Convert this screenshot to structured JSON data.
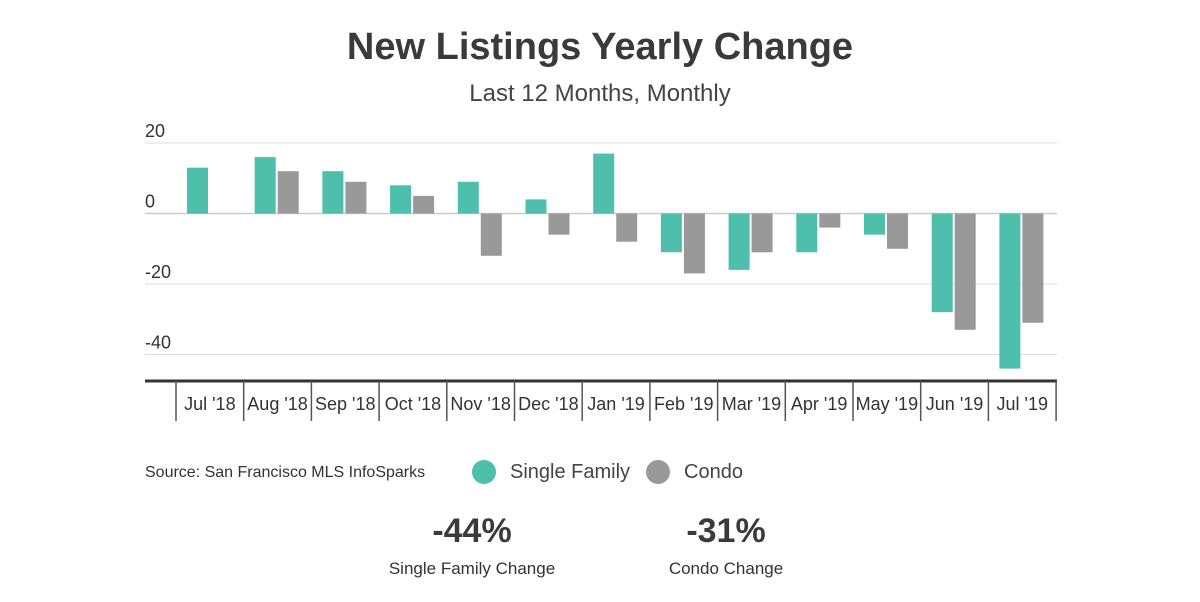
{
  "colors": {
    "single_family": "#4dbfaa",
    "condo": "#999999",
    "axis": "#333333",
    "grid": "#dddddd"
  },
  "chart_data": {
    "type": "bar",
    "title": "New Listings Yearly Change",
    "subtitle": "Last 12 Months, Monthly",
    "xlabel": "",
    "ylabel": "",
    "categories": [
      "Jul '18",
      "Aug '18",
      "Sep '18",
      "Oct '18",
      "Nov '18",
      "Dec '18",
      "Jan '19",
      "Feb '19",
      "Mar '19",
      "Apr '19",
      "May '19",
      "Jun '19",
      "Jul '19"
    ],
    "series": [
      {
        "name": "Single Family",
        "values": [
          13,
          16,
          12,
          8,
          9,
          4,
          17,
          -11,
          -16,
          -11,
          -6,
          -28,
          -44
        ]
      },
      {
        "name": "Condo",
        "values": [
          null,
          12,
          9,
          5,
          -12,
          -6,
          -8,
          -17,
          -11,
          -4,
          -10,
          -33,
          -31
        ]
      }
    ],
    "ylim": [
      -47,
      20
    ],
    "yticks": [
      20,
      0,
      -20,
      -40
    ],
    "grid": true,
    "legend": "bottom"
  },
  "source": "Source:  San Francisco MLS InfoSparks",
  "stats": [
    {
      "value": "-44%",
      "label": "Single Family  Change"
    },
    {
      "value": "-31%",
      "label": "Condo Change"
    }
  ]
}
